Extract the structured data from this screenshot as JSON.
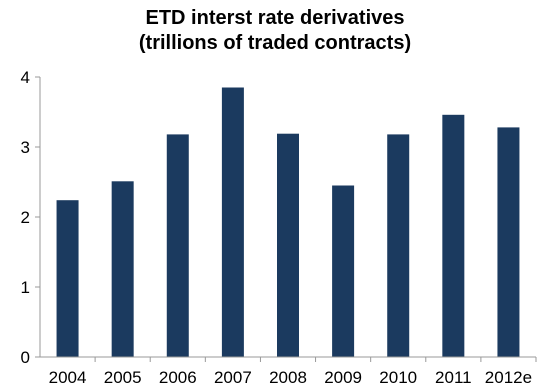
{
  "chart_data": {
    "type": "bar",
    "title_line1": "ETD interst rate derivatives",
    "title_line2": "(trillions of traded contracts)",
    "xlabel": "",
    "ylabel": "",
    "categories": [
      "2004",
      "2005",
      "2006",
      "2007",
      "2008",
      "2009",
      "2010",
      "2011",
      "2012e"
    ],
    "values": [
      2.24,
      2.51,
      3.18,
      3.85,
      3.19,
      2.45,
      3.18,
      3.46,
      3.28
    ],
    "ylim": [
      0,
      4
    ],
    "yticks": [
      0,
      1,
      2,
      3,
      4
    ],
    "grid": false,
    "legend": "none",
    "bar_color": "#1b3a5f",
    "axis_color": "#999999"
  }
}
